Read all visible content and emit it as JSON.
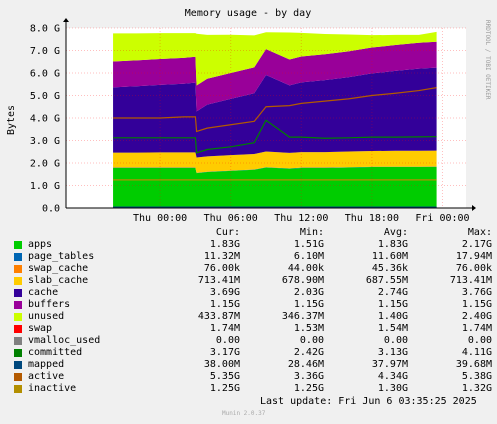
{
  "chart_data": {
    "type": "area",
    "title": "Memory usage - by day",
    "ylabel": "Bytes",
    "side_label": "RRDTOOL / TOBI OETIKER",
    "ylim": [
      0,
      8.0
    ],
    "y_ticks": [
      "0.0",
      "1.0 G",
      "2.0 G",
      "3.0 G",
      "4.0 G",
      "5.0 G",
      "6.0 G",
      "7.0 G",
      "8.0 G"
    ],
    "x": [
      0,
      2,
      4,
      6,
      7,
      7.1,
      8,
      10,
      12,
      13,
      15,
      16,
      18,
      20,
      22,
      24,
      26,
      27.5
    ],
    "x_ticks": [
      {
        "label": "Thu 00:00",
        "at": 4
      },
      {
        "label": "Thu 06:00",
        "at": 10
      },
      {
        "label": "Thu 12:00",
        "at": 16
      },
      {
        "label": "Thu 18:00",
        "at": 22
      },
      {
        "label": "Fri 00:00",
        "at": 28
      }
    ],
    "x_range": [
      -4,
      30
    ],
    "stack_series": [
      {
        "name": "apps",
        "color": "#00cc00",
        "values": [
          1.78,
          1.78,
          1.78,
          1.78,
          1.78,
          1.55,
          1.6,
          1.65,
          1.7,
          1.8,
          1.75,
          1.78,
          1.78,
          1.8,
          1.82,
          1.82,
          1.82,
          1.83
        ]
      },
      {
        "name": "page_tables",
        "color": "#0066b3",
        "values": [
          0.012,
          0.012,
          0.012,
          0.012,
          0.012,
          0.012,
          0.012,
          0.012,
          0.012,
          0.012,
          0.012,
          0.012,
          0.012,
          0.012,
          0.012,
          0.012,
          0.012,
          0.011
        ]
      },
      {
        "name": "swap_cache",
        "color": "#ff8000",
        "values": [
          0.0001,
          0.0001,
          0.0001,
          0.0001,
          0.0001,
          0.0001,
          0.0001,
          0.0001,
          0.0001,
          0.0001,
          0.0001,
          0.0001,
          0.0001,
          0.0001,
          0.0001,
          0.0001,
          0.0001,
          0.0001
        ]
      },
      {
        "name": "slab_cache",
        "color": "#ffcc00",
        "values": [
          0.67,
          0.67,
          0.68,
          0.68,
          0.68,
          0.68,
          0.68,
          0.69,
          0.69,
          0.7,
          0.69,
          0.69,
          0.69,
          0.7,
          0.7,
          0.71,
          0.71,
          0.71
        ]
      },
      {
        "name": "cache",
        "color": "#330099",
        "values": [
          2.9,
          2.95,
          3.0,
          3.05,
          3.1,
          2.05,
          2.3,
          2.5,
          2.7,
          3.4,
          3.0,
          3.1,
          3.2,
          3.3,
          3.45,
          3.55,
          3.65,
          3.69
        ]
      },
      {
        "name": "buffers",
        "color": "#990099",
        "values": [
          1.15,
          1.15,
          1.15,
          1.15,
          1.15,
          1.15,
          1.15,
          1.15,
          1.15,
          1.15,
          1.15,
          1.15,
          1.15,
          1.15,
          1.15,
          1.15,
          1.15,
          1.15
        ]
      },
      {
        "name": "unused",
        "color": "#ccff00",
        "values": [
          1.25,
          1.2,
          1.15,
          1.1,
          1.05,
          2.3,
          1.95,
          1.7,
          1.42,
          0.75,
          1.2,
          1.05,
          0.9,
          0.75,
          0.55,
          0.45,
          0.35,
          0.434
        ]
      }
    ],
    "line_series": [
      {
        "name": "swap",
        "color": "#ff0000",
        "values": [
          0.0017,
          0.0017,
          0.0017,
          0.0017,
          0.0017,
          0.0017,
          0.0017,
          0.0017,
          0.0017,
          0.0017,
          0.0017,
          0.0017,
          0.0017,
          0.0017,
          0.0017,
          0.0017,
          0.0017,
          0.0017
        ]
      },
      {
        "name": "committed",
        "color": "#008000",
        "values": [
          3.12,
          3.12,
          3.12,
          3.12,
          3.12,
          2.45,
          2.6,
          2.72,
          2.9,
          3.9,
          3.15,
          3.15,
          3.1,
          3.12,
          3.15,
          3.15,
          3.16,
          3.17
        ]
      },
      {
        "name": "mapped",
        "color": "#00487d",
        "values": [
          0.038,
          0.038,
          0.038,
          0.038,
          0.038,
          0.038,
          0.038,
          0.038,
          0.038,
          0.038,
          0.038,
          0.038,
          0.038,
          0.038,
          0.038,
          0.038,
          0.038,
          0.038
        ]
      },
      {
        "name": "active",
        "color": "#b35a00",
        "values": [
          4.0,
          4.0,
          4.0,
          4.05,
          4.05,
          3.4,
          3.55,
          3.7,
          3.85,
          4.5,
          4.55,
          4.65,
          4.75,
          4.85,
          5.0,
          5.1,
          5.22,
          5.35
        ]
      },
      {
        "name": "inactive",
        "color": "#b38f00",
        "values": [
          1.25,
          1.25,
          1.25,
          1.25,
          1.25,
          1.25,
          1.25,
          1.25,
          1.25,
          1.25,
          1.25,
          1.25,
          1.25,
          1.25,
          1.25,
          1.25,
          1.25,
          1.25
        ]
      }
    ],
    "legend_headers": {
      "cur": "Cur:",
      "min": "Min:",
      "avg": "Avg:",
      "max": "Max:"
    },
    "legend": [
      {
        "name": "apps",
        "color": "#00cc00",
        "cur": "1.83G",
        "min": "1.51G",
        "avg": "1.83G",
        "max": "2.17G"
      },
      {
        "name": "page_tables",
        "color": "#0066b3",
        "cur": "11.32M",
        "min": "6.10M",
        "avg": "11.60M",
        "max": "17.94M"
      },
      {
        "name": "swap_cache",
        "color": "#ff8000",
        "cur": "76.00k",
        "min": "44.00k",
        "avg": "45.36k",
        "max": "76.00k"
      },
      {
        "name": "slab_cache",
        "color": "#ffcc00",
        "cur": "713.41M",
        "min": "678.90M",
        "avg": "687.55M",
        "max": "713.41M"
      },
      {
        "name": "cache",
        "color": "#330099",
        "cur": "3.69G",
        "min": "2.03G",
        "avg": "2.74G",
        "max": "3.76G"
      },
      {
        "name": "buffers",
        "color": "#990099",
        "cur": "1.15G",
        "min": "1.15G",
        "avg": "1.15G",
        "max": "1.15G"
      },
      {
        "name": "unused",
        "color": "#ccff00",
        "cur": "433.87M",
        "min": "346.37M",
        "avg": "1.40G",
        "max": "2.40G"
      },
      {
        "name": "swap",
        "color": "#ff0000",
        "cur": "1.74M",
        "min": "1.53M",
        "avg": "1.54M",
        "max": "1.74M"
      },
      {
        "name": "vmalloc_used",
        "color": "#808080",
        "cur": "0.00",
        "min": "0.00",
        "avg": "0.00",
        "max": "0.00"
      },
      {
        "name": "committed",
        "color": "#008000",
        "cur": "3.17G",
        "min": "2.42G",
        "avg": "3.13G",
        "max": "4.11G"
      },
      {
        "name": "mapped",
        "color": "#00487d",
        "cur": "38.00M",
        "min": "28.46M",
        "avg": "37.97M",
        "max": "39.68M"
      },
      {
        "name": "active",
        "color": "#b35a00",
        "cur": "5.35G",
        "min": "3.36G",
        "avg": "4.34G",
        "max": "5.38G"
      },
      {
        "name": "inactive",
        "color": "#b38f00",
        "cur": "1.25G",
        "min": "1.25G",
        "avg": "1.30G",
        "max": "1.32G"
      }
    ]
  },
  "footer": {
    "last_update": "Last update: Fri Jun  6 03:35:25 2025",
    "version": "Munin 2.0.37"
  }
}
